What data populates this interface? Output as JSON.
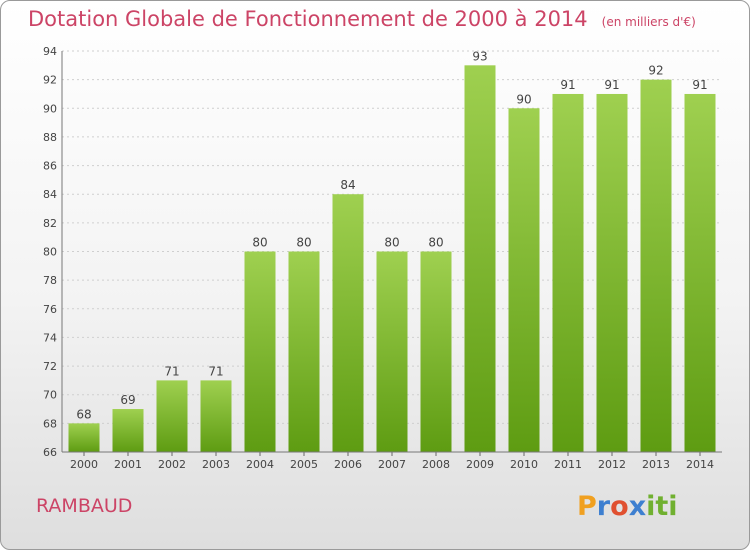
{
  "header": {
    "title": "Dotation Globale de Fonctionnement de 2000 à 2014",
    "subtitle": "(en milliers d'€)"
  },
  "footer": {
    "commune": "RAMBAUD",
    "brand": [
      "P",
      "r",
      "o",
      "x",
      "iti"
    ]
  },
  "colors": {
    "accent": "#cc4466",
    "bar_top": "#9fd050",
    "bar_bottom": "#5e9c12"
  },
  "chart_data": {
    "type": "bar",
    "categories": [
      "2000",
      "2001",
      "2002",
      "2003",
      "2004",
      "2005",
      "2006",
      "2007",
      "2008",
      "2009",
      "2010",
      "2011",
      "2012",
      "2013",
      "2014"
    ],
    "values": [
      68,
      69,
      71,
      71,
      80,
      80,
      84,
      80,
      80,
      93,
      90,
      91,
      91,
      92,
      91
    ],
    "title": "Dotation Globale de Fonctionnement de 2000 à 2014",
    "subtitle": "(en milliers d'€)",
    "xlabel": "",
    "ylabel": "",
    "ylim": [
      66,
      94
    ],
    "yticks": [
      66,
      68,
      70,
      72,
      74,
      76,
      78,
      80,
      82,
      84,
      86,
      88,
      90,
      92,
      94
    ],
    "grid": true,
    "legend": "none"
  }
}
